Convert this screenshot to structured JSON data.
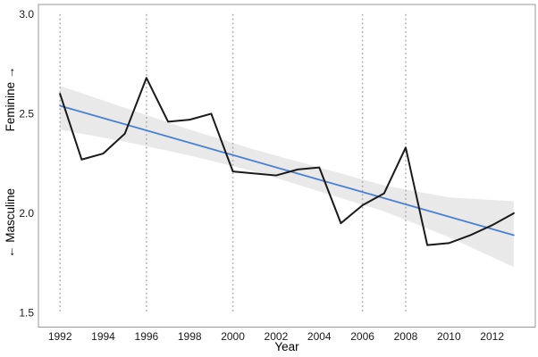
{
  "chart_data": {
    "type": "line",
    "title": "",
    "xlabel": "Year",
    "ylabel_top": "Feminine →",
    "ylabel_bottom": "← Masculine",
    "legend": "none",
    "grid": "vertical-dotted-reference-lines-only",
    "x_domain": [
      1991,
      2014
    ],
    "y_domain": [
      1.428,
      3.049
    ],
    "x_tick_values": [
      1992,
      1994,
      1996,
      1998,
      2000,
      2002,
      2004,
      2006,
      2008,
      2010,
      2012
    ],
    "x_tick_labels": [
      "1992",
      "1994",
      "1996",
      "1998",
      "2000",
      "2002",
      "2004",
      "2006",
      "2008",
      "2010",
      "2012"
    ],
    "y_tick_values": [
      3.0,
      2.5,
      2.0,
      1.5
    ],
    "y_tick_labels": [
      "3.0",
      "2.5",
      "2.0",
      "1.5"
    ],
    "vline_years": [
      1992,
      1996,
      2000,
      2006,
      2008
    ],
    "series": [
      {
        "name": "observed-line",
        "color": "#1a1a1a",
        "width": 2,
        "x": [
          1992,
          1993,
          1994,
          1995,
          1996,
          1997,
          1998,
          1999,
          2000,
          2001,
          2002,
          2003,
          2004,
          2005,
          2006,
          2007,
          2008,
          2009,
          2010,
          2011,
          2012,
          2013
        ],
        "y": [
          2.6,
          2.27,
          2.3,
          2.4,
          2.68,
          2.46,
          2.47,
          2.5,
          2.21,
          2.2,
          2.19,
          2.22,
          2.23,
          1.95,
          2.04,
          2.1,
          2.33,
          1.84,
          1.85,
          1.89,
          1.94,
          2.0
        ]
      },
      {
        "name": "trend-line",
        "color": "#4a80d4",
        "width": 1.8,
        "x": [
          1992,
          2013
        ],
        "y": [
          2.54,
          1.89
        ]
      }
    ],
    "ribbon": {
      "name": "confidence-band",
      "color": "#e9e9e9",
      "x": [
        1992,
        1995,
        1998,
        2001,
        2004,
        2007,
        2010,
        2013
      ],
      "upper": [
        2.64,
        2.53,
        2.42,
        2.32,
        2.23,
        2.14,
        2.08,
        2.06
      ],
      "lower": [
        2.42,
        2.36,
        2.29,
        2.21,
        2.11,
        2.01,
        1.88,
        1.73
      ]
    },
    "colors": {
      "background": "#ffffff",
      "panel_border": "#999999",
      "gridline": "#a8a8a8",
      "tick_text": "#1a1a1a",
      "axis_title": "#000000"
    }
  }
}
